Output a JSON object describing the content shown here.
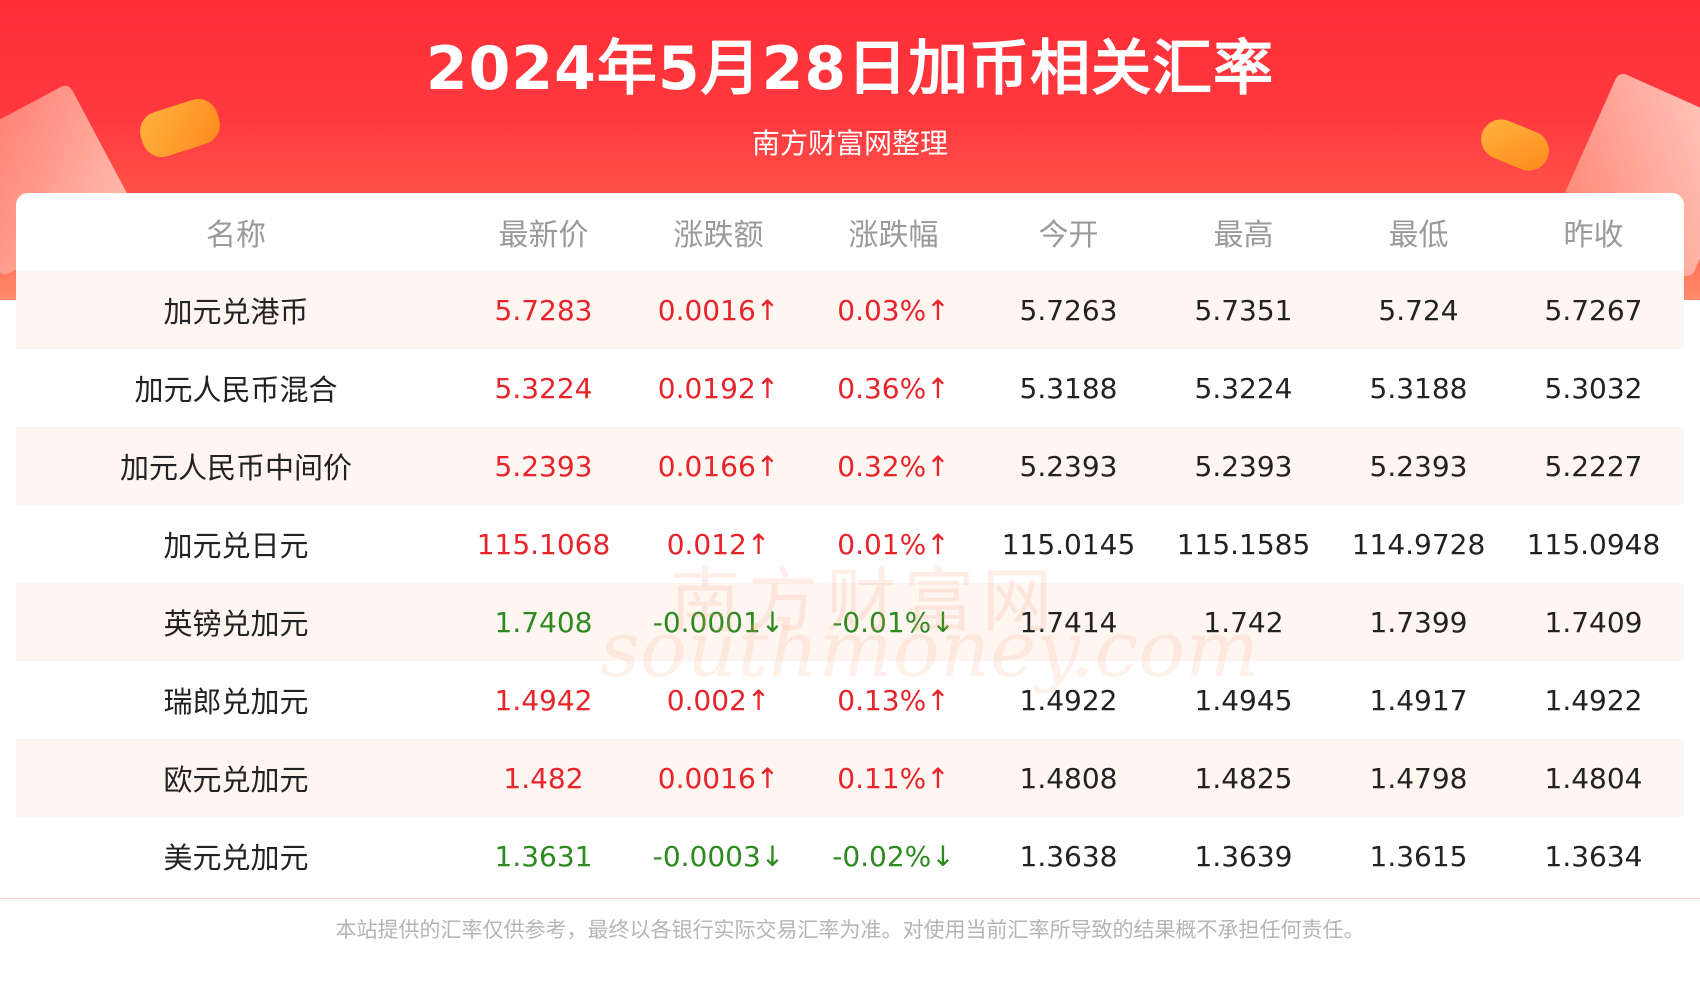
{
  "header": {
    "title": "2024年5月28日加币相关汇率",
    "subtitle": "南方财富网整理"
  },
  "colors": {
    "up": "#e8242b",
    "down": "#2c8a1f",
    "header_red": "#ff2c36",
    "stripe": "#fff5f1"
  },
  "table": {
    "columns": [
      "名称",
      "最新价",
      "涨跌额",
      "涨跌幅",
      "今开",
      "最高",
      "最低",
      "昨收"
    ],
    "rows": [
      {
        "name": "加元兑港币",
        "latest": "5.7283",
        "change": "0.0016↑",
        "pct": "0.03%↑",
        "open": "5.7263",
        "high": "5.7351",
        "low": "5.724",
        "prev": "5.7267",
        "dir": "up"
      },
      {
        "name": "加元人民币混合",
        "latest": "5.3224",
        "change": "0.0192↑",
        "pct": "0.36%↑",
        "open": "5.3188",
        "high": "5.3224",
        "low": "5.3188",
        "prev": "5.3032",
        "dir": "up"
      },
      {
        "name": "加元人民币中间价",
        "latest": "5.2393",
        "change": "0.0166↑",
        "pct": "0.32%↑",
        "open": "5.2393",
        "high": "5.2393",
        "low": "5.2393",
        "prev": "5.2227",
        "dir": "up"
      },
      {
        "name": "加元兑日元",
        "latest": "115.1068",
        "change": "0.012↑",
        "pct": "0.01%↑",
        "open": "115.0145",
        "high": "115.1585",
        "low": "114.9728",
        "prev": "115.0948",
        "dir": "up"
      },
      {
        "name": "英镑兑加元",
        "latest": "1.7408",
        "change": "-0.0001↓",
        "pct": "-0.01%↓",
        "open": "1.7414",
        "high": "1.742",
        "low": "1.7399",
        "prev": "1.7409",
        "dir": "down"
      },
      {
        "name": "瑞郎兑加元",
        "latest": "1.4942",
        "change": "0.002↑",
        "pct": "0.13%↑",
        "open": "1.4922",
        "high": "1.4945",
        "low": "1.4917",
        "prev": "1.4922",
        "dir": "up"
      },
      {
        "name": "欧元兑加元",
        "latest": "1.482",
        "change": "0.0016↑",
        "pct": "0.11%↑",
        "open": "1.4808",
        "high": "1.4825",
        "low": "1.4798",
        "prev": "1.4804",
        "dir": "up"
      },
      {
        "name": "美元兑加元",
        "latest": "1.3631",
        "change": "-0.0003↓",
        "pct": "-0.02%↓",
        "open": "1.3638",
        "high": "1.3639",
        "low": "1.3615",
        "prev": "1.3634",
        "dir": "down"
      }
    ]
  },
  "watermark": {
    "cn": "南方财富网",
    "en": "southmoney.com"
  },
  "footer": {
    "disclaimer": "本站提供的汇率仅供参考，最终以各银行实际交易汇率为准。对使用当前汇率所导致的结果概不承担任何责任。"
  }
}
